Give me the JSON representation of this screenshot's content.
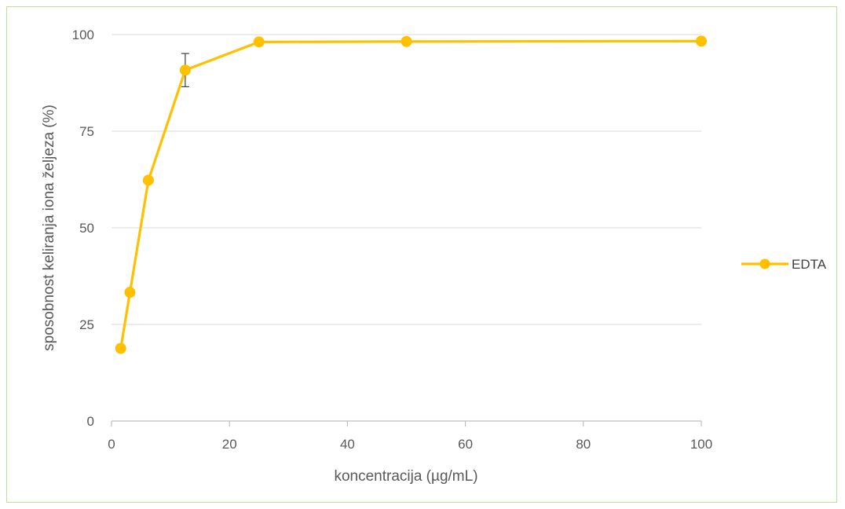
{
  "chart_data": {
    "type": "line",
    "title": "",
    "xlabel": "koncentracija (µg/mL)",
    "ylabel": "sposobnost keliranja iona željeza (%)",
    "xlim": [
      0,
      100
    ],
    "ylim": [
      0,
      100
    ],
    "x_ticks": [
      0,
      20,
      40,
      60,
      80,
      100
    ],
    "y_ticks": [
      0,
      25,
      50,
      75,
      100
    ],
    "grid": "horizontal",
    "legend": "right",
    "series": [
      {
        "name": "EDTA",
        "color": "#FFC000",
        "x": [
          1.5625,
          3.125,
          6.25,
          12.5,
          25,
          50,
          100
        ],
        "y": [
          18.8,
          33.3,
          62.3,
          90.8,
          98.1,
          98.2,
          98.3
        ],
        "error": [
          0,
          0,
          0,
          4.3,
          0,
          0,
          0
        ]
      }
    ]
  }
}
